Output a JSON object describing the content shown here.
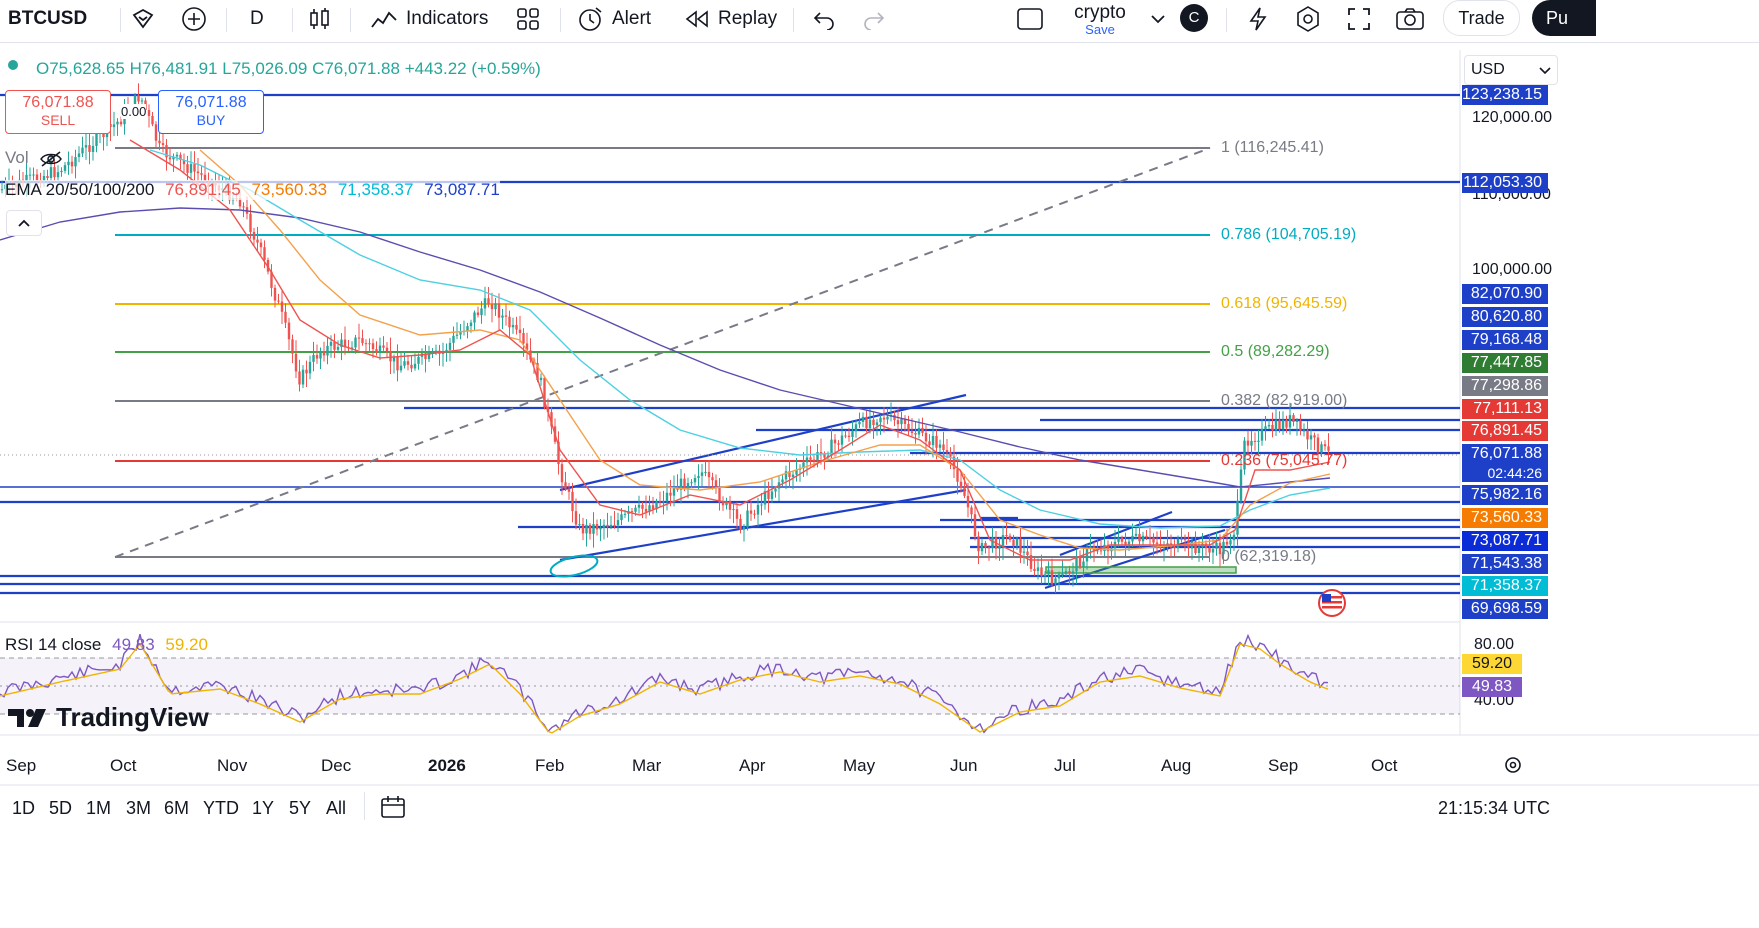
{
  "toolbar": {
    "symbol": "BTCUSD",
    "interval": "D",
    "indicators_label": "Indicators",
    "alert_label": "Alert",
    "replay_label": "Replay",
    "layout_name": "crypto",
    "layout_status": "Save",
    "avatar_letter": "C",
    "trade_label": "Trade",
    "publish_label": "Pu"
  },
  "legend": {
    "ohlc": {
      "o": "O75,628.65",
      "h": "H76,481.91",
      "l": "L75,026.09",
      "c": "C76,071.88",
      "chg": "+443.22 (+0.59%)"
    },
    "sell_price": "76,071.88",
    "sell_label": "SELL",
    "spread": "0.00",
    "buy_price": "76,071.88",
    "buy_label": "BUY",
    "vol_label": "Vol",
    "ema_label": "EMA 20/50/100/200",
    "ema_values": [
      "76,891.45",
      "73,560.33",
      "71,358.37",
      "73,087.71"
    ]
  },
  "currency": "USD",
  "price_axis": {
    "ticks": [
      "120,000.00",
      "110,000.00",
      "100,000.00"
    ],
    "labels": [
      {
        "text": "123,238.15",
        "color": "#1e40c8"
      },
      {
        "text": "112,053.30",
        "color": "#1e40c8"
      },
      {
        "text": "82,070.90",
        "color": "#1e40c8"
      },
      {
        "text": "80,620.80",
        "color": "#1e40c8"
      },
      {
        "text": "79,168.48",
        "color": "#1e40c8"
      },
      {
        "text": "77,447.85",
        "color": "#2e7d32"
      },
      {
        "text": "77,298.86",
        "color": "#787b86"
      },
      {
        "text": "77,111.13",
        "color": "#e53935"
      },
      {
        "text": "76,891.45",
        "color": "#e53935"
      },
      {
        "text": "76,071.88",
        "color": "#1e40c8"
      },
      {
        "text": "02:44:26",
        "color": "#1e40c8"
      },
      {
        "text": "75,982.16",
        "color": "#1e40c8"
      },
      {
        "text": "73,560.33",
        "color": "#f57c00"
      },
      {
        "text": "73,087.71",
        "color": "#0a2bd6"
      },
      {
        "text": "71,543.38",
        "color": "#1e40c8"
      },
      {
        "text": "71,358.37",
        "color": "#00bcd4"
      },
      {
        "text": "69,698.59",
        "color": "#1e40c8"
      }
    ]
  },
  "fib_levels": [
    {
      "label": "1 (116,245.41)",
      "color": "#787b86"
    },
    {
      "label": "0.786 (104,705.19)",
      "color": "#00acc1"
    },
    {
      "label": "0.618 (95,645.59)",
      "color": "#f0b400"
    },
    {
      "label": "0.5 (89,282.29)",
      "color": "#43a047"
    },
    {
      "label": "0.382 (82,919.00)",
      "color": "#787b86"
    },
    {
      "label": "0.236 (75,045.77)",
      "color": "#e53935"
    },
    {
      "label": "0 (62,319.18)",
      "color": "#787b86"
    }
  ],
  "rsi": {
    "label": "RSI 14 close",
    "value": "49.83",
    "ma_value": "59.20",
    "ticks": [
      "80.00",
      "40.00"
    ]
  },
  "x_axis": [
    "Sep",
    "Oct",
    "Nov",
    "Dec",
    "2026",
    "Feb",
    "Mar",
    "Apr",
    "May",
    "Jun",
    "Jul",
    "Aug",
    "Sep",
    "Oct"
  ],
  "ranges": [
    "1D",
    "5D",
    "1M",
    "3M",
    "6M",
    "YTD",
    "1Y",
    "5Y",
    "All"
  ],
  "clock": "21:15:34 UTC",
  "brand": "TradingView",
  "colors": {
    "blue_line": "#1e40c8",
    "red_candle": "#ef5350",
    "green_candle": "#26a69a"
  }
}
